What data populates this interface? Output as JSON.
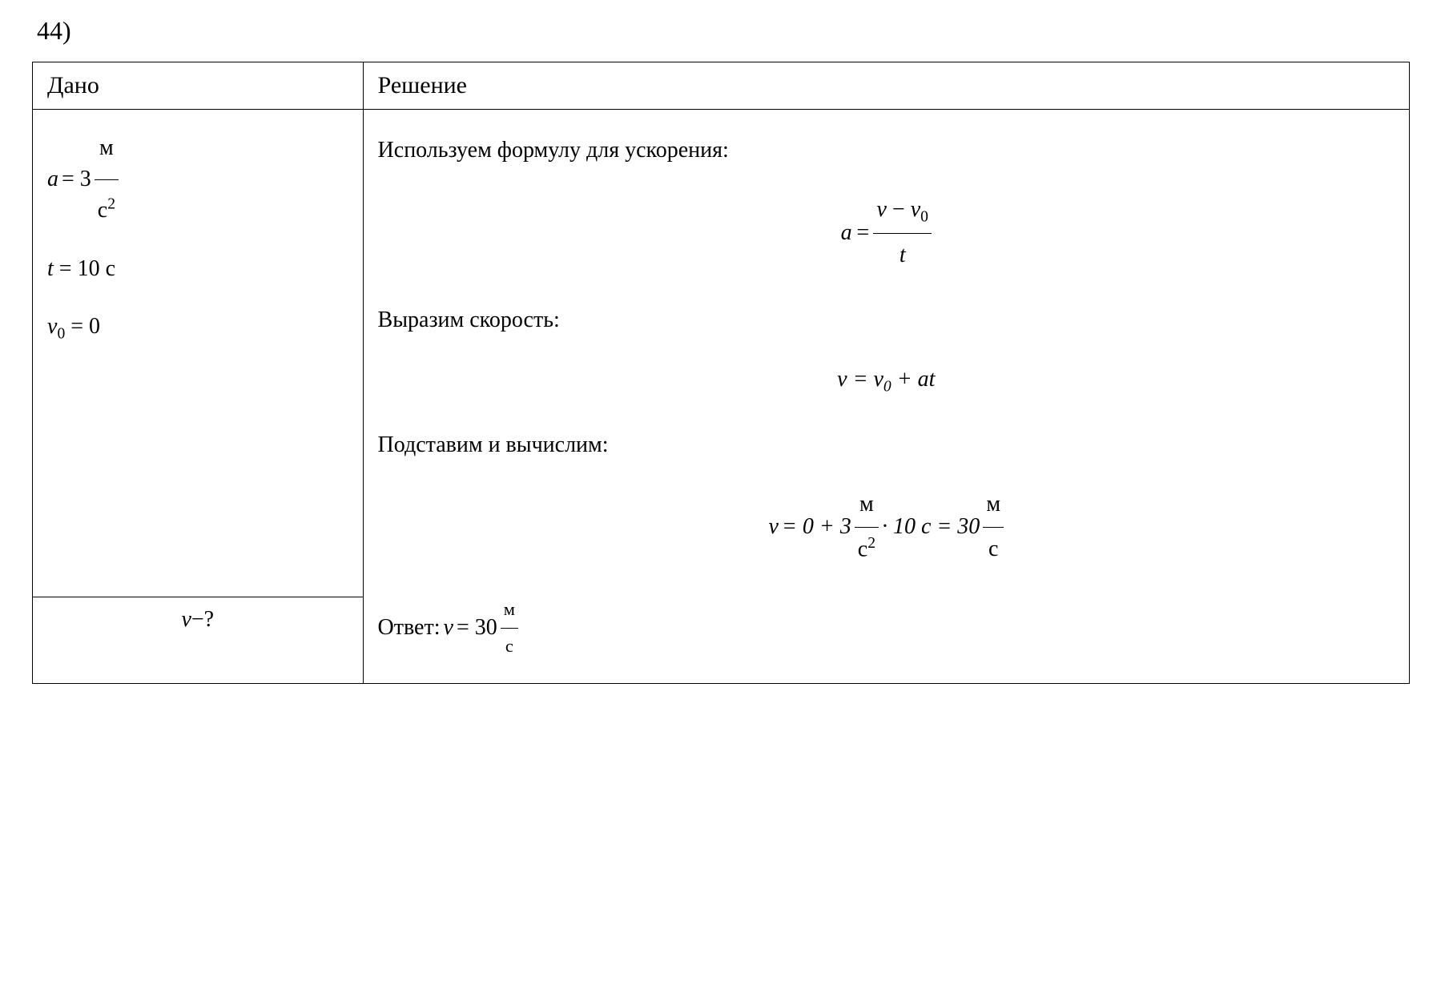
{
  "problem": {
    "number": "44)"
  },
  "headers": {
    "given": "Дано",
    "solution": "Решение"
  },
  "given": {
    "a_label": "a",
    "a_eq": " = 3",
    "a_unit_num": "м",
    "a_unit_den": "с",
    "a_unit_exp": "2",
    "t_label": "t",
    "t_val": " = 10 с",
    "v0_label": "v",
    "v0_sub": "0",
    "v0_val": " = 0"
  },
  "find": {
    "v_label": "v",
    "question": "−?"
  },
  "solution": {
    "step1_text": "Используем формулу для ускорения:",
    "formula1_lhs": "a",
    "formula1_eq": " = ",
    "formula1_num_v": "v",
    "formula1_num_minus": " − ",
    "formula1_num_v0": "v",
    "formula1_num_sub0": "0",
    "formula1_den": "t",
    "step2_text": "Выразим скорость:",
    "formula2_v": "v",
    "formula2_eq": " = ",
    "formula2_v0": "v",
    "formula2_sub0": "0",
    "formula2_plus": " + ",
    "formula2_a": "a",
    "formula2_t": "t",
    "step3_text": "Подставим и вычислим:",
    "calc_v": "v",
    "calc_eq1": " = 0 + 3",
    "calc_unit1_num": "м",
    "calc_unit1_den": "с",
    "calc_unit1_exp": "2",
    "calc_mult": " · 10 с = 30",
    "calc_unit2_num": "м",
    "calc_unit2_den": "с",
    "answer_label": "Ответ: ",
    "answer_v": "v",
    "answer_eq": " = 30",
    "answer_unit_num": "м",
    "answer_unit_den": "с"
  },
  "styling": {
    "background_color": "#ffffff",
    "text_color": "#000000",
    "border_color": "#000000",
    "font_family": "Times New Roman",
    "base_fontsize": 28,
    "header_fontsize": 30,
    "number_fontsize": 32,
    "table_max_width": 1720,
    "left_col_width_pct": 24,
    "right_col_width_pct": 76
  }
}
